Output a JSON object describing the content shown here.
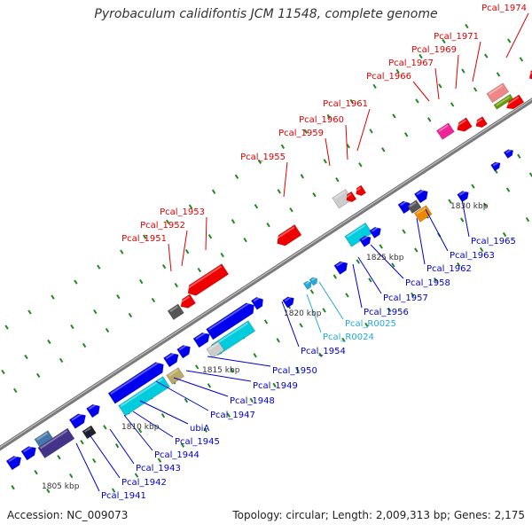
{
  "title": "Pyrobaculum calidifontis JCM 11548, complete genome",
  "footer": {
    "accession": "Accession: NC_009073",
    "summary": "Topology: circular; Length: 2,009,313 bp; Genes: 2,175"
  },
  "colors": {
    "backbone": "#7a7a7a",
    "label_red": "#dd0000",
    "label_blue": "#0000cc",
    "label_cyan": "#22aadd",
    "tick": "#228822"
  },
  "scale_labels": [
    "1805 kbp",
    "1810 kbp",
    "1815 kbp",
    "1820 kbp",
    "1825 kbp",
    "1830 kbp"
  ],
  "genes_upper": [
    {
      "name": "Pcal_1951",
      "color": "#dd0000"
    },
    {
      "name": "Pcal_1952",
      "color": "#dd0000"
    },
    {
      "name": "Pcal_1953",
      "color": "#dd0000"
    },
    {
      "name": "Pcal_1955",
      "color": "#dd0000"
    },
    {
      "name": "Pcal_1959",
      "color": "#dd0000"
    },
    {
      "name": "Pcal_1960",
      "color": "#dd0000"
    },
    {
      "name": "Pcal_1961",
      "color": "#dd0000"
    },
    {
      "name": "Pcal_1966",
      "color": "#dd0000"
    },
    {
      "name": "Pcal_1967",
      "color": "#dd0000"
    },
    {
      "name": "Pcal_1969",
      "color": "#dd0000"
    },
    {
      "name": "Pcal_1971",
      "color": "#dd0000"
    },
    {
      "name": "Pcal_1974",
      "color": "#dd0000"
    }
  ],
  "genes_lower": [
    {
      "name": "Pcal_1941",
      "color": "#0000cc"
    },
    {
      "name": "Pcal_1942",
      "color": "#0000cc"
    },
    {
      "name": "Pcal_1943",
      "color": "#0000cc"
    },
    {
      "name": "Pcal_1944",
      "color": "#0000cc"
    },
    {
      "name": "Pcal_1945",
      "color": "#0000cc"
    },
    {
      "name": "ubiA",
      "color": "#0000cc"
    },
    {
      "name": "Pcal_1947",
      "color": "#0000cc"
    },
    {
      "name": "Pcal_1948",
      "color": "#0000cc"
    },
    {
      "name": "Pcal_1949",
      "color": "#0000cc"
    },
    {
      "name": "Pcal_1950",
      "color": "#0000cc"
    },
    {
      "name": "Pcal_1954",
      "color": "#0000cc"
    },
    {
      "name": "Pcal_R0024",
      "color": "#22aadd"
    },
    {
      "name": "Pcal_R0025",
      "color": "#22aadd"
    },
    {
      "name": "Pcal_1956",
      "color": "#0000cc"
    },
    {
      "name": "Pcal_1957",
      "color": "#0000cc"
    },
    {
      "name": "Pcal_1958",
      "color": "#0000cc"
    },
    {
      "name": "Pcal_1962",
      "color": "#0000cc"
    },
    {
      "name": "Pcal_1963",
      "color": "#0000cc"
    },
    {
      "name": "Pcal_1965",
      "color": "#0000cc"
    }
  ]
}
